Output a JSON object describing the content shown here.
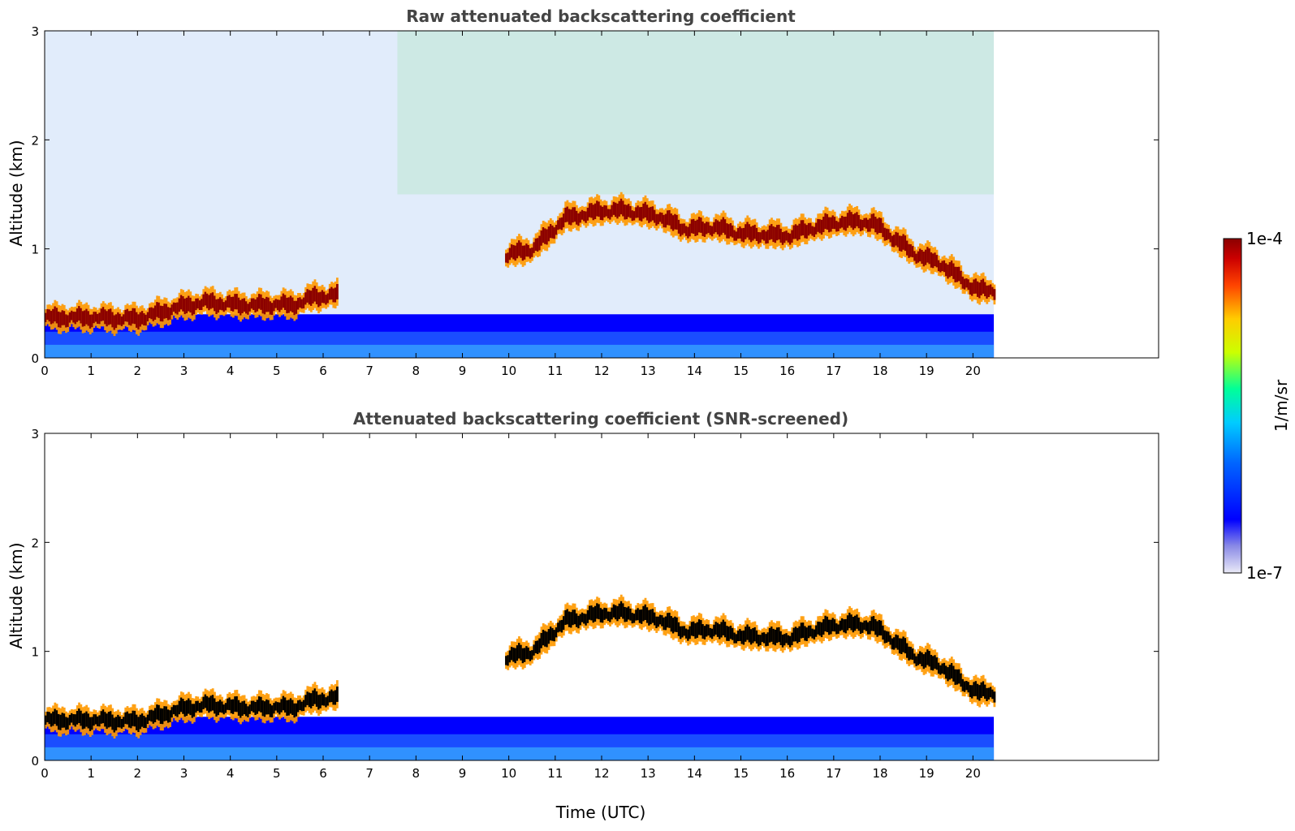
{
  "chart_data": [
    {
      "type": "heatmap",
      "title": "Raw attenuated backscattering coefficient",
      "xlabel": "",
      "ylabel": "Altitude (km)",
      "xlim": [
        0,
        24
      ],
      "ylim": [
        0,
        3
      ],
      "xticks": [
        0,
        1,
        2,
        3,
        4,
        5,
        6,
        7,
        8,
        9,
        10,
        11,
        12,
        13,
        14,
        15,
        16,
        17,
        18,
        19,
        20
      ],
      "yticks": [
        0,
        1,
        2,
        3
      ],
      "data_end_time": 20.45,
      "background_layer": {
        "time": [
          0,
          20.45
        ],
        "altitude_top": [
          0.4,
          0.4
        ],
        "level": "low"
      },
      "cloud_layer": {
        "time": [
          0,
          0.45,
          1.1,
          1.5,
          2.0,
          2.5,
          3.0,
          3.5,
          4.0,
          4.5,
          5.0,
          5.3,
          5.8,
          6.2,
          10.0,
          10.5,
          11.2,
          12.0,
          12.5,
          13.2,
          13.8,
          14.4,
          15.0,
          16.0,
          16.6,
          17.2,
          17.8,
          18.2,
          18.7,
          19.3,
          19.8,
          20.1,
          20.45
        ],
        "altitude": [
          0.37,
          0.37,
          0.37,
          0.36,
          0.36,
          0.42,
          0.48,
          0.51,
          0.49,
          0.48,
          0.49,
          0.48,
          0.56,
          0.57,
          0.95,
          1.0,
          1.28,
          1.35,
          1.35,
          1.3,
          1.18,
          1.2,
          1.14,
          1.12,
          1.2,
          1.25,
          1.24,
          1.12,
          0.96,
          0.86,
          0.7,
          0.62,
          0.62
        ]
      },
      "colorbar": {
        "min_label": "1e-7",
        "max_label": "1e-4",
        "label": "1/m/sr",
        "scale": "log"
      },
      "colors": [
        "#eaeaf7",
        "#0000ff",
        "#00aaff",
        "#00ffcc",
        "#ffff00",
        "#ff9900",
        "#ff0000",
        "#8b0000"
      ]
    },
    {
      "type": "heatmap",
      "title": "Attenuated backscattering coefficient (SNR-screened)",
      "xlabel": "Time (UTC)",
      "ylabel": "Altitude (km)",
      "xlim": [
        0,
        24
      ],
      "ylim": [
        0,
        3
      ],
      "xticks": [
        0,
        1,
        2,
        3,
        4,
        5,
        6,
        7,
        8,
        9,
        10,
        11,
        12,
        13,
        14,
        15,
        16,
        17,
        18,
        19,
        20
      ],
      "yticks": [
        0,
        1,
        2,
        3
      ],
      "data_end_time": 20.45,
      "background_layer": {
        "time": [
          0,
          20.45
        ],
        "altitude_top": [
          0.4,
          0.4
        ],
        "level": "low"
      },
      "cloud_layer": {
        "time": [
          0,
          0.45,
          1.1,
          1.5,
          2.0,
          2.5,
          3.0,
          3.5,
          4.0,
          4.5,
          5.0,
          5.3,
          5.8,
          6.2,
          10.0,
          10.5,
          11.2,
          12.0,
          12.5,
          13.2,
          13.8,
          14.4,
          15.0,
          16.0,
          16.6,
          17.2,
          17.8,
          18.2,
          18.7,
          19.3,
          19.8,
          20.1,
          20.45
        ],
        "altitude": [
          0.37,
          0.37,
          0.37,
          0.36,
          0.36,
          0.42,
          0.48,
          0.51,
          0.49,
          0.48,
          0.49,
          0.48,
          0.56,
          0.57,
          0.95,
          1.0,
          1.28,
          1.35,
          1.35,
          1.3,
          1.18,
          1.2,
          1.14,
          1.12,
          1.2,
          1.25,
          1.24,
          1.12,
          0.96,
          0.86,
          0.7,
          0.62,
          0.62
        ]
      },
      "colorbar": {
        "min_label": "1e-7",
        "max_label": "1e-4",
        "label": "1/m/sr",
        "scale": "log"
      },
      "colors": [
        "#eaeaf7",
        "#0000ff",
        "#00aaff",
        "#00ffcc",
        "#ffff00",
        "#ff9900",
        "#ff0000",
        "#000000"
      ]
    }
  ]
}
